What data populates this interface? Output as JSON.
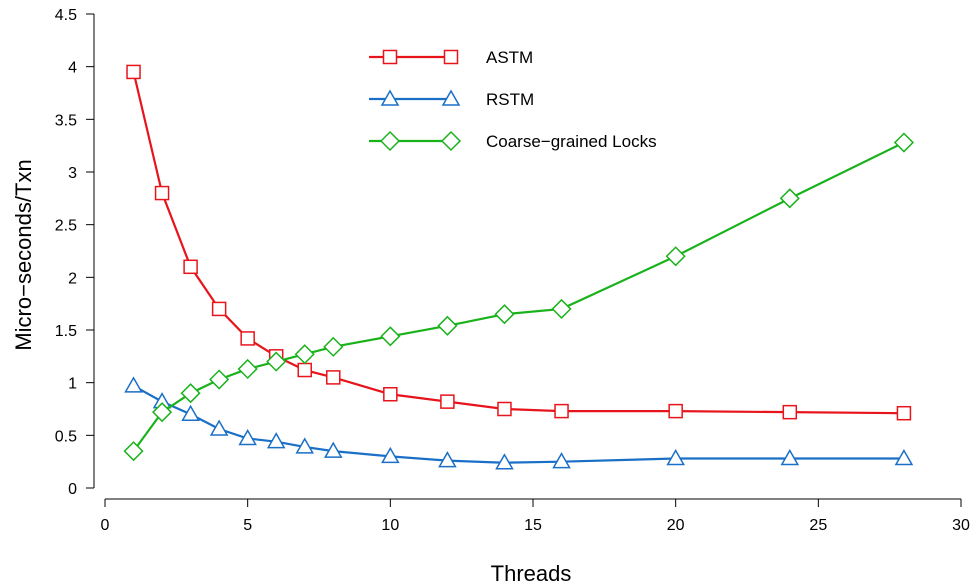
{
  "chart_data": {
    "type": "line",
    "xlabel": "Threads",
    "ylabel": "Micro−seconds/Txn",
    "xlim": [
      0,
      30
    ],
    "ylim": [
      0,
      4.5
    ],
    "xticks": [
      0,
      5,
      10,
      15,
      20,
      25,
      30
    ],
    "yticks": [
      0,
      0.5,
      1,
      1.5,
      2,
      2.5,
      3,
      3.5,
      4,
      4.5
    ],
    "xtick_labels": [
      "0",
      "5",
      "10",
      "15",
      "20",
      "25",
      "30"
    ],
    "ytick_labels": [
      "0",
      "0.5",
      "1",
      "1.5",
      "2",
      "2.5",
      "3",
      "3.5",
      "4",
      "4.5"
    ],
    "x": [
      1,
      2,
      3,
      4,
      5,
      6,
      7,
      8,
      10,
      12,
      14,
      16,
      20,
      24,
      28
    ],
    "grid": false,
    "legend_position": "top-center",
    "series": [
      {
        "name": "ASTM",
        "color": "#e8141c",
        "marker": "square",
        "values": [
          3.95,
          2.8,
          2.1,
          1.7,
          1.42,
          1.25,
          1.12,
          1.05,
          0.89,
          0.82,
          0.75,
          0.73,
          0.73,
          0.72,
          0.71
        ]
      },
      {
        "name": "RSTM",
        "color": "#1a6fc7",
        "marker": "triangle",
        "values": [
          0.97,
          0.82,
          0.7,
          0.56,
          0.47,
          0.44,
          0.39,
          0.35,
          0.3,
          0.26,
          0.24,
          0.25,
          0.28,
          0.28,
          0.28
        ]
      },
      {
        "name": "Coarse−grained Locks",
        "color": "#19b21b",
        "marker": "diamond",
        "values": [
          0.35,
          0.72,
          0.9,
          1.03,
          1.13,
          1.2,
          1.27,
          1.34,
          1.44,
          1.54,
          1.65,
          1.7,
          2.2,
          2.75,
          3.28
        ]
      }
    ]
  }
}
